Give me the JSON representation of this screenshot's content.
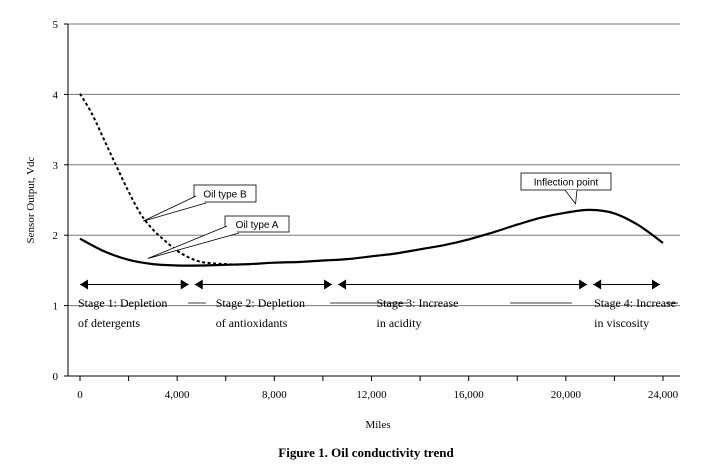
{
  "chart_data": {
    "type": "line",
    "title": "Figure 1. Oil conductivity trend",
    "xlabel": "Miles",
    "ylabel": "Sensor Output, Vdc",
    "xlim": [
      0,
      24000
    ],
    "ylim": [
      0,
      5
    ],
    "x_tick_labels": [
      "0",
      "4,000",
      "8,000",
      "12,000",
      "16,000",
      "20,000",
      "24,000"
    ],
    "y_tick_labels": [
      "0",
      "1",
      "2",
      "3",
      "4",
      "5"
    ],
    "grid": "horizontal",
    "series": [
      {
        "name": "Oil type A",
        "style": "solid",
        "color": "#000000",
        "x": [
          0,
          1000,
          2000,
          3000,
          4000,
          5000,
          6000,
          7000,
          8000,
          9000,
          10000,
          11000,
          12000,
          13000,
          14000,
          15000,
          16000,
          17000,
          18000,
          19000,
          20000,
          21000,
          22000,
          23000,
          24000
        ],
        "y": [
          1.95,
          1.77,
          1.65,
          1.59,
          1.57,
          1.57,
          1.58,
          1.59,
          1.61,
          1.62,
          1.64,
          1.66,
          1.7,
          1.74,
          1.8,
          1.86,
          1.94,
          2.04,
          2.15,
          2.25,
          2.32,
          2.36,
          2.31,
          2.14,
          1.89
        ]
      },
      {
        "name": "Oil type B",
        "style": "dashed",
        "color": "#000000",
        "x": [
          0,
          500,
          1000,
          1500,
          2000,
          2500,
          3000,
          3500,
          4000,
          4500,
          5000,
          5500,
          6000,
          6500
        ],
        "y": [
          4.01,
          3.72,
          3.35,
          2.98,
          2.62,
          2.3,
          2.08,
          1.92,
          1.78,
          1.68,
          1.62,
          1.6,
          1.59,
          1.58
        ]
      }
    ],
    "annotations": [
      {
        "text": "Oil type B",
        "target_x": 2600,
        "target_y": 2.2
      },
      {
        "text": "Oil type A",
        "target_x": 2800,
        "target_y": 1.67
      },
      {
        "text": "Inflection point",
        "target_x": 20400,
        "target_y": 2.36
      }
    ],
    "stages": [
      {
        "line1": "Stage 1: Depletion",
        "line2": "of detergents",
        "x_start": 0,
        "x_end": 4600
      },
      {
        "line1": "Stage 2: Depletion",
        "line2": "of antioxidants",
        "x_start": 4600,
        "x_end": 10500
      },
      {
        "line1": "Stage 3: Increase",
        "line2": "in acidity",
        "x_start": 10500,
        "x_end": 21000
      },
      {
        "line1": "Stage 4: Increase",
        "line2": "in viscosity",
        "x_start": 21000,
        "x_end": 24000
      }
    ],
    "stage_arrow_y": 1.3
  }
}
